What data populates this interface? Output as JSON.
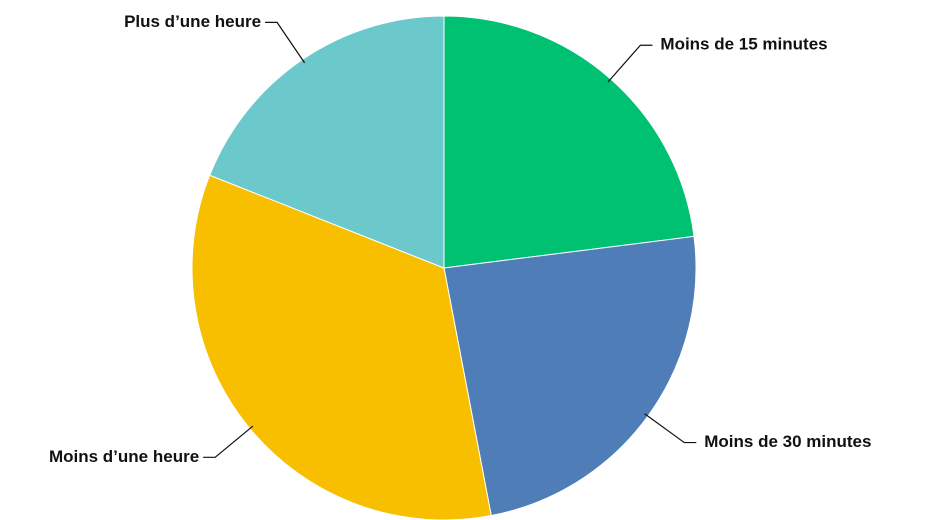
{
  "chart_data": {
    "type": "pie",
    "categories": [
      "Moins de 15 minutes",
      "Moins de 30 minutes",
      "Moins d’une heure",
      "Plus d’une heure"
    ],
    "values": [
      23,
      24,
      34,
      19
    ],
    "colors": [
      "#00c072",
      "#4f7db8",
      "#f8be00",
      "#6bc8cb"
    ]
  }
}
